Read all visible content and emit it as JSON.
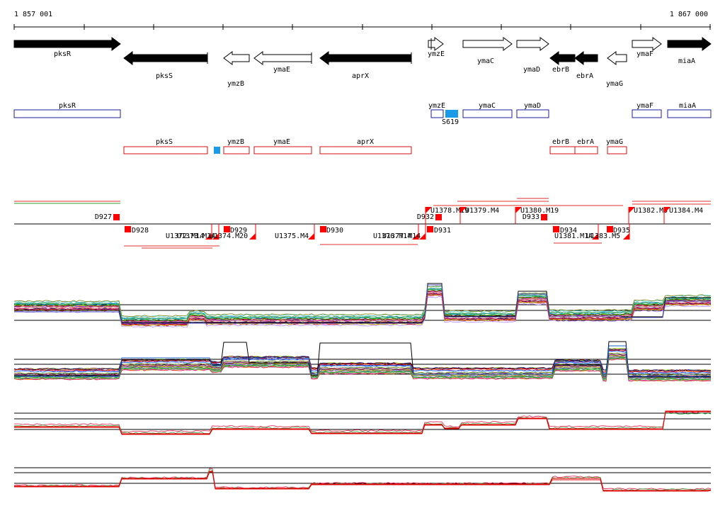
{
  "ruler": {
    "start_label": "1 857 001",
    "end_label": "1 867 000"
  },
  "colors": {
    "forward_box": "#1c1c9c",
    "reverse_box": "#d01010",
    "marker": "#ff0000",
    "highlight": "#1a9be8",
    "axis": "#000000"
  },
  "genes": [
    {
      "name": "pksR",
      "strand": "fwd",
      "fill": "black"
    },
    {
      "name": "pksS",
      "strand": "rev",
      "fill": "black"
    },
    {
      "name": "ymzB",
      "strand": "rev",
      "fill": "white"
    },
    {
      "name": "ymaE",
      "strand": "rev",
      "fill": "white"
    },
    {
      "name": "aprX",
      "strand": "rev",
      "fill": "black"
    },
    {
      "name": "ymzE",
      "strand": "fwd",
      "fill": "white"
    },
    {
      "name": "ymaC",
      "strand": "fwd",
      "fill": "white"
    },
    {
      "name": "ymaD",
      "strand": "fwd",
      "fill": "white"
    },
    {
      "name": "ebrB",
      "strand": "rev",
      "fill": "black"
    },
    {
      "name": "ebrA",
      "strand": "rev",
      "fill": "black"
    },
    {
      "name": "ymaG",
      "strand": "rev",
      "fill": "white"
    },
    {
      "name": "ymaF",
      "strand": "fwd",
      "fill": "white"
    },
    {
      "name": "miaA",
      "strand": "fwd",
      "fill": "black"
    }
  ],
  "forward_boxes": [
    {
      "label": "pksR"
    },
    {
      "label": "ymzE"
    },
    {
      "label": "ymaC"
    },
    {
      "label": "ymaD"
    },
    {
      "label": "ymaF"
    },
    {
      "label": "miaA"
    }
  ],
  "forward_highlight": {
    "label": "S619"
  },
  "reverse_boxes": [
    {
      "label": "pksS"
    },
    {
      "label": "ymzB"
    },
    {
      "label": "ymaE"
    },
    {
      "label": "aprX"
    },
    {
      "label": "ebrB"
    },
    {
      "label": "ebrA"
    },
    {
      "label": "ymaG"
    }
  ],
  "segments_top": [
    {
      "label": "D927"
    },
    {
      "label": "D932"
    },
    {
      "label": "U1378.M19"
    },
    {
      "label": "U1379.M4"
    },
    {
      "label": "U1380.M19"
    },
    {
      "label": "D933"
    },
    {
      "label": "U1382.M5"
    },
    {
      "label": "U1384.M4"
    }
  ],
  "segments_bottom": [
    {
      "label": "D928"
    },
    {
      "label": "U1372.M14"
    },
    {
      "label": "U1373.M14"
    },
    {
      "label": "U1374.M20"
    },
    {
      "label": "D929"
    },
    {
      "label": "U1375.M4"
    },
    {
      "label": "D930"
    },
    {
      "label": "U1376.M14"
    },
    {
      "label": "U1377.M14"
    },
    {
      "label": "D931"
    },
    {
      "label": "D934"
    },
    {
      "label": "U1381.M14"
    },
    {
      "label": "U1383.M5"
    },
    {
      "label": "D935"
    }
  ]
}
